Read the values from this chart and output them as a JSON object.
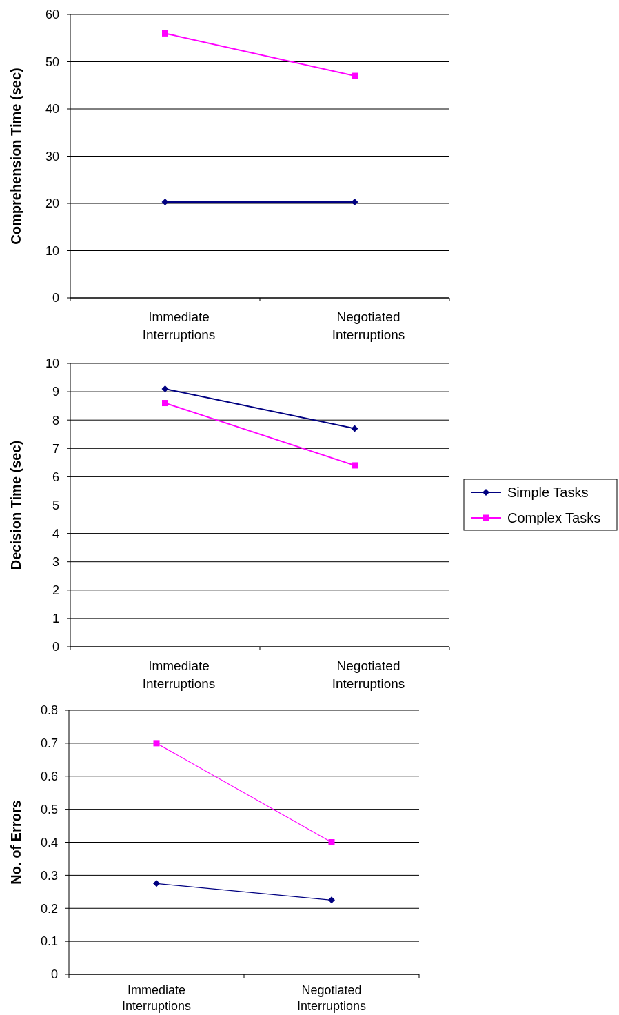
{
  "chart_data": [
    {
      "type": "line",
      "ylabel": "Comprehension Time (sec)",
      "categories": [
        "Immediate Interruptions",
        "Negotiated Interruptions"
      ],
      "ylim": [
        0,
        60
      ],
      "yticks": [
        0,
        10,
        20,
        30,
        40,
        50,
        60
      ],
      "grid": "y",
      "legend": false,
      "series": [
        {
          "color": "#000080",
          "marker": "diamond",
          "values": [
            20.3,
            20.3
          ]
        },
        {
          "color": "#ff00ff",
          "marker": "square",
          "values": [
            56,
            47
          ]
        }
      ]
    },
    {
      "type": "line",
      "ylabel": "Decision Time (sec)",
      "categories": [
        "Immediate Interruptions",
        "Negotiated Interruptions"
      ],
      "ylim": [
        0,
        10
      ],
      "yticks": [
        0,
        1,
        2,
        3,
        4,
        5,
        6,
        7,
        8,
        9,
        10
      ],
      "grid": "y",
      "legend": "right",
      "series": [
        {
          "name": "Simple Tasks",
          "color": "#000080",
          "marker": "diamond",
          "values": [
            9.1,
            7.7
          ]
        },
        {
          "name": "Complex Tasks",
          "color": "#ff00ff",
          "marker": "square",
          "values": [
            8.6,
            6.4
          ]
        }
      ]
    },
    {
      "type": "line",
      "ylabel": "No. of Errors",
      "categories": [
        "Immediate Interruptions",
        "Negotiated Interruptions"
      ],
      "ylim": [
        0,
        0.8
      ],
      "yticks": [
        0,
        0.1,
        0.2,
        0.3,
        0.4,
        0.5,
        0.6,
        0.7,
        0.8
      ],
      "grid": "y",
      "legend": false,
      "series": [
        {
          "color": "#000080",
          "marker": "diamond",
          "values": [
            0.275,
            0.225
          ]
        },
        {
          "color": "#ff00ff",
          "marker": "square",
          "values": [
            0.7,
            0.4
          ]
        }
      ]
    }
  ]
}
